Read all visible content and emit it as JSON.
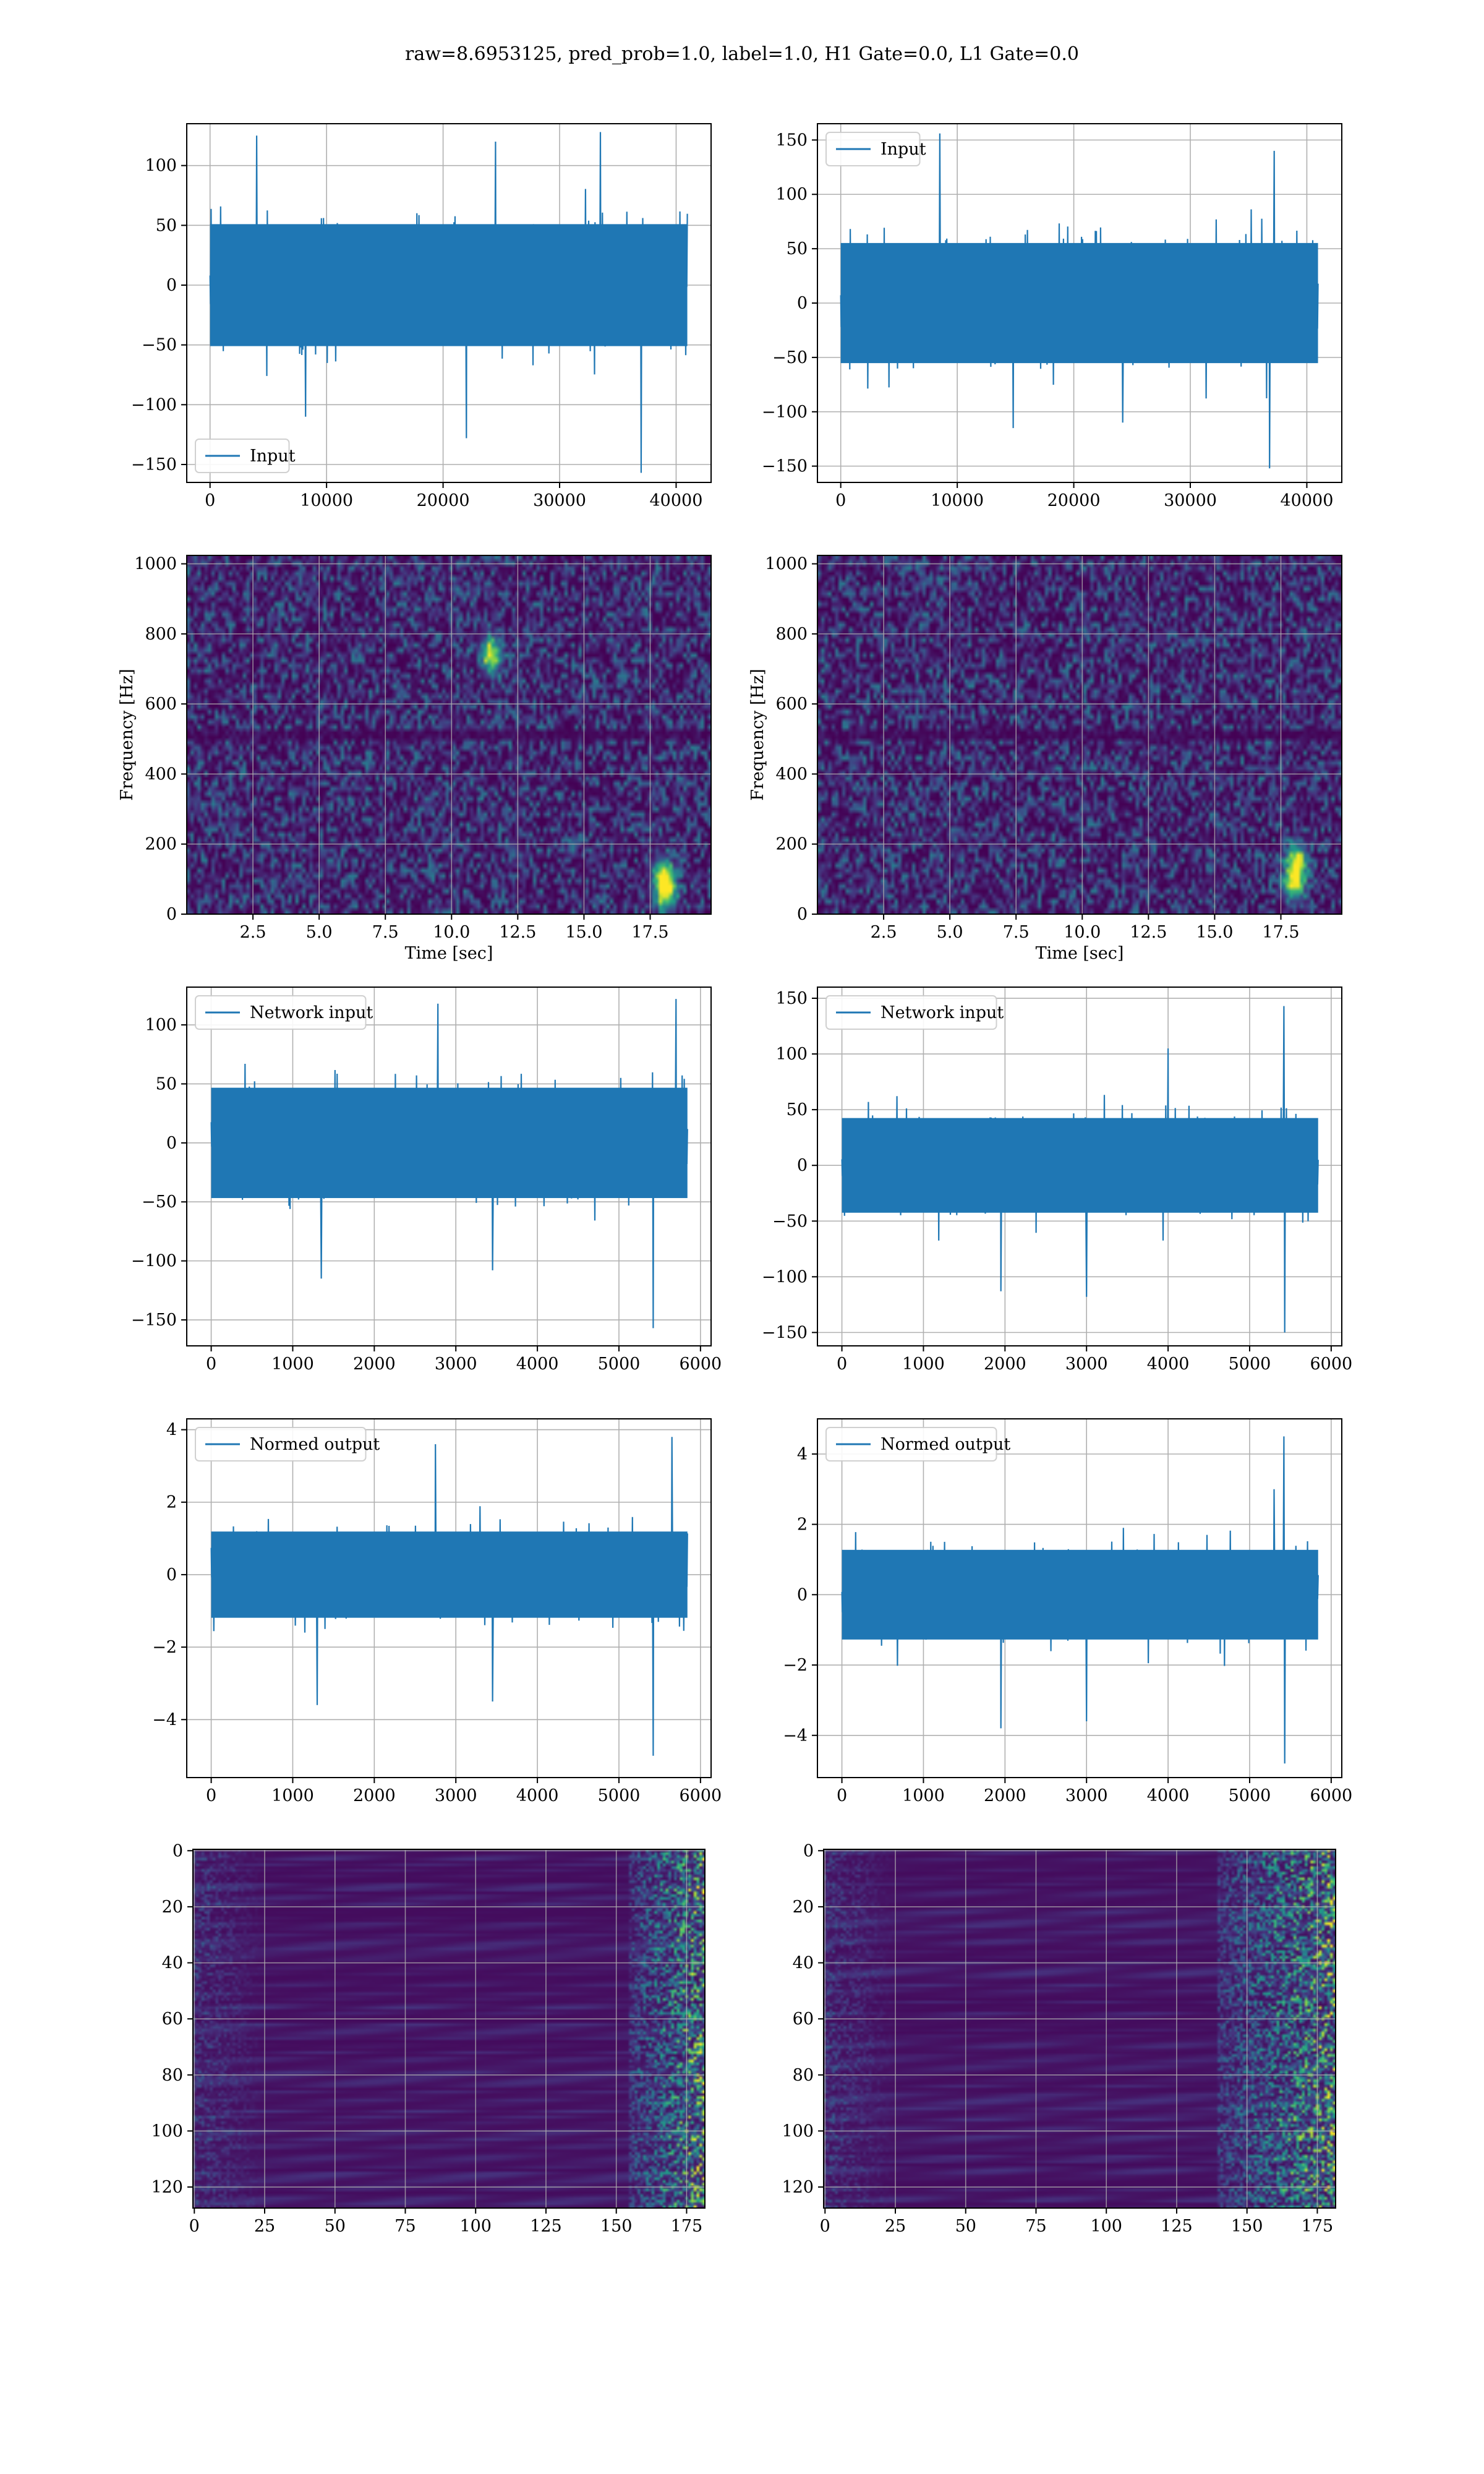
{
  "suptitle": "raw=8.6953125, pred_prob=1.0, label=1.0, H1 Gate=0.0, L1 Gate=0.0",
  "colors": {
    "line": "#1f77b4",
    "grid": "#b0b0b0",
    "axes": "#000000",
    "viridis": [
      "#440154",
      "#46327e",
      "#365c8d",
      "#277f8e",
      "#1fa187",
      "#4ac16d",
      "#a0da39",
      "#fde725"
    ]
  },
  "chart_data": [
    {
      "id": "h1-input",
      "type": "line",
      "series": [
        {
          "name": "Input",
          "x_range": [
            0,
            40960
          ],
          "typical_amplitude": 60,
          "peak_max": 125,
          "peak_min": -157,
          "spikes": [
            [
              4000,
              125
            ],
            [
              24500,
              120
            ],
            [
              33500,
              128
            ],
            [
              37000,
              -157
            ],
            [
              8200,
              -110
            ],
            [
              22000,
              -128
            ]
          ]
        }
      ],
      "xlim": [
        -2000,
        43000
      ],
      "ylim": [
        -165,
        135
      ],
      "xticks": [
        0,
        10000,
        20000,
        30000,
        40000
      ],
      "xtick_labels": [
        "0",
        "10000",
        "20000",
        "30000",
        "40000"
      ],
      "yticks": [
        -150,
        -100,
        -50,
        0,
        50,
        100
      ],
      "ytick_labels": [
        "−150",
        "−100",
        "−50",
        "0",
        "50",
        "100"
      ],
      "legend": "lower-left",
      "grid": true,
      "xlabel": "",
      "ylabel": ""
    },
    {
      "id": "l1-input",
      "type": "line",
      "series": [
        {
          "name": "Input",
          "x_range": [
            0,
            40960
          ],
          "typical_amplitude": 65,
          "peak_max": 156,
          "peak_min": -152,
          "spikes": [
            [
              8500,
              156
            ],
            [
              37200,
              140
            ],
            [
              36800,
              -152
            ],
            [
              24200,
              -110
            ],
            [
              14800,
              -115
            ]
          ]
        }
      ],
      "xlim": [
        -2000,
        43000
      ],
      "ylim": [
        -165,
        165
      ],
      "xticks": [
        0,
        10000,
        20000,
        30000,
        40000
      ],
      "xtick_labels": [
        "0",
        "10000",
        "20000",
        "30000",
        "40000"
      ],
      "yticks": [
        -150,
        -100,
        -50,
        0,
        50,
        100,
        150
      ],
      "ytick_labels": [
        "−150",
        "−100",
        "−50",
        "0",
        "50",
        "100",
        "150"
      ],
      "legend": "upper-left",
      "grid": true,
      "xlabel": "",
      "ylabel": ""
    },
    {
      "id": "h1-spectrogram",
      "type": "heatmap",
      "xlim": [
        0,
        19.8
      ],
      "ylim": [
        0,
        1024
      ],
      "xticks": [
        2.5,
        5.0,
        7.5,
        10.0,
        12.5,
        15.0,
        17.5
      ],
      "xtick_labels": [
        "2.5",
        "5.0",
        "7.5",
        "10.0",
        "12.5",
        "15.0",
        "17.5"
      ],
      "yticks": [
        0,
        200,
        400,
        600,
        800,
        1000
      ],
      "ytick_labels": [
        "0",
        "200",
        "400",
        "600",
        "800",
        "1000"
      ],
      "xlabel": "Time [sec]",
      "ylabel": "Frequency [Hz]",
      "dark_band_hz": 512,
      "hotspots": [
        [
          18.1,
          60
        ],
        [
          18.0,
          110
        ],
        [
          11.5,
          740
        ]
      ],
      "grid": true
    },
    {
      "id": "l1-spectrogram",
      "type": "heatmap",
      "xlim": [
        0,
        19.8
      ],
      "ylim": [
        0,
        1024
      ],
      "xticks": [
        2.5,
        5.0,
        7.5,
        10.0,
        12.5,
        15.0,
        17.5
      ],
      "xtick_labels": [
        "2.5",
        "5.0",
        "7.5",
        "10.0",
        "12.5",
        "15.0",
        "17.5"
      ],
      "yticks": [
        0,
        200,
        400,
        600,
        800,
        1000
      ],
      "ytick_labels": [
        "0",
        "200",
        "400",
        "600",
        "800",
        "1000"
      ],
      "xlabel": "Time [sec]",
      "ylabel": "Frequency [Hz]",
      "dark_band_hz": 512,
      "hotspots": [
        [
          18.1,
          150
        ],
        [
          18.0,
          90
        ]
      ],
      "grid": true
    },
    {
      "id": "h1-network-input",
      "type": "line",
      "series": [
        {
          "name": "Network input",
          "x_range": [
            0,
            5840
          ],
          "typical_amplitude": 55,
          "peak_max": 122,
          "peak_min": -157,
          "spikes": [
            [
              2780,
              118
            ],
            [
              5700,
              122
            ],
            [
              5420,
              -157
            ],
            [
              1350,
              -115
            ],
            [
              3450,
              -108
            ]
          ]
        }
      ],
      "xlim": [
        -300,
        6130
      ],
      "ylim": [
        -172,
        132
      ],
      "xticks": [
        0,
        1000,
        2000,
        3000,
        4000,
        5000,
        6000
      ],
      "xtick_labels": [
        "0",
        "1000",
        "2000",
        "3000",
        "4000",
        "5000",
        "6000"
      ],
      "yticks": [
        -150,
        -100,
        -50,
        0,
        50,
        100
      ],
      "ytick_labels": [
        "−150",
        "−100",
        "−50",
        "0",
        "50",
        "100"
      ],
      "legend": "upper-left",
      "grid": true,
      "xlabel": "",
      "ylabel": ""
    },
    {
      "id": "l1-network-input",
      "type": "line",
      "series": [
        {
          "name": "Network input",
          "x_range": [
            0,
            5840
          ],
          "typical_amplitude": 50,
          "peak_max": 143,
          "peak_min": -150,
          "spikes": [
            [
              5420,
              143
            ],
            [
              4000,
              105
            ],
            [
              5430,
              -150
            ],
            [
              1950,
              -113
            ],
            [
              3000,
              -118
            ]
          ]
        }
      ],
      "xlim": [
        -300,
        6130
      ],
      "ylim": [
        -162,
        160
      ],
      "xticks": [
        0,
        1000,
        2000,
        3000,
        4000,
        5000,
        6000
      ],
      "xtick_labels": [
        "0",
        "1000",
        "2000",
        "3000",
        "4000",
        "5000",
        "6000"
      ],
      "yticks": [
        -150,
        -100,
        -50,
        0,
        50,
        100,
        150
      ],
      "ytick_labels": [
        "−150",
        "−100",
        "−50",
        "0",
        "50",
        "100",
        "150"
      ],
      "legend": "upper-left",
      "grid": true,
      "xlabel": "",
      "ylabel": ""
    },
    {
      "id": "h1-normed-output",
      "type": "line",
      "series": [
        {
          "name": "Normed output",
          "x_range": [
            0,
            5840
          ],
          "typical_amplitude": 1.4,
          "peak_max": 3.8,
          "peak_min": -5.0,
          "spikes": [
            [
              5650,
              3.8
            ],
            [
              2750,
              3.6
            ],
            [
              5420,
              -5.0
            ],
            [
              1300,
              -3.6
            ],
            [
              3450,
              -3.5
            ]
          ]
        }
      ],
      "xlim": [
        -300,
        6130
      ],
      "ylim": [
        -5.6,
        4.3
      ],
      "xticks": [
        0,
        1000,
        2000,
        3000,
        4000,
        5000,
        6000
      ],
      "xtick_labels": [
        "0",
        "1000",
        "2000",
        "3000",
        "4000",
        "5000",
        "6000"
      ],
      "yticks": [
        -4,
        -2,
        0,
        2,
        4
      ],
      "ytick_labels": [
        "−4",
        "−2",
        "0",
        "2",
        "4"
      ],
      "legend": "upper-left",
      "grid": true,
      "xlabel": "",
      "ylabel": ""
    },
    {
      "id": "l1-normed-output",
      "type": "line",
      "series": [
        {
          "name": "Normed output",
          "x_range": [
            0,
            5840
          ],
          "typical_amplitude": 1.5,
          "peak_max": 4.5,
          "peak_min": -4.8,
          "spikes": [
            [
              5420,
              4.5
            ],
            [
              5300,
              3.0
            ],
            [
              5430,
              -4.8
            ],
            [
              1950,
              -3.8
            ],
            [
              3000,
              -3.6
            ]
          ]
        }
      ],
      "xlim": [
        -300,
        6130
      ],
      "ylim": [
        -5.2,
        5.0
      ],
      "xticks": [
        0,
        1000,
        2000,
        3000,
        4000,
        5000,
        6000
      ],
      "xtick_labels": [
        "0",
        "1000",
        "2000",
        "3000",
        "4000",
        "5000",
        "6000"
      ],
      "yticks": [
        -4,
        -2,
        0,
        2,
        4
      ],
      "ytick_labels": [
        "−4",
        "−2",
        "0",
        "2",
        "4"
      ],
      "legend": "upper-left",
      "grid": true,
      "xlabel": "",
      "ylabel": ""
    },
    {
      "id": "h1-feature-map",
      "type": "heatmap",
      "rows": 128,
      "cols": 182,
      "xlim": [
        -0.5,
        181.5
      ],
      "ylim": [
        127.5,
        -0.5
      ],
      "xticks": [
        0,
        25,
        50,
        75,
        100,
        125,
        150,
        175
      ],
      "xtick_labels": [
        "0",
        "25",
        "50",
        "75",
        "100",
        "125",
        "150",
        "175"
      ],
      "yticks": [
        0,
        20,
        40,
        60,
        80,
        100,
        120
      ],
      "ytick_labels": [
        "0",
        "20",
        "40",
        "60",
        "80",
        "100",
        "120"
      ],
      "active_columns": [
        155,
        181
      ],
      "grid": true
    },
    {
      "id": "l1-feature-map",
      "type": "heatmap",
      "rows": 128,
      "cols": 182,
      "xlim": [
        -0.5,
        181.5
      ],
      "ylim": [
        127.5,
        -0.5
      ],
      "xticks": [
        0,
        25,
        50,
        75,
        100,
        125,
        150,
        175
      ],
      "xtick_labels": [
        "0",
        "25",
        "50",
        "75",
        "100",
        "125",
        "150",
        "175"
      ],
      "yticks": [
        0,
        20,
        40,
        60,
        80,
        100,
        120
      ],
      "ytick_labels": [
        "0",
        "20",
        "40",
        "60",
        "80",
        "100",
        "120"
      ],
      "active_columns": [
        140,
        181
      ],
      "grid": true
    }
  ]
}
